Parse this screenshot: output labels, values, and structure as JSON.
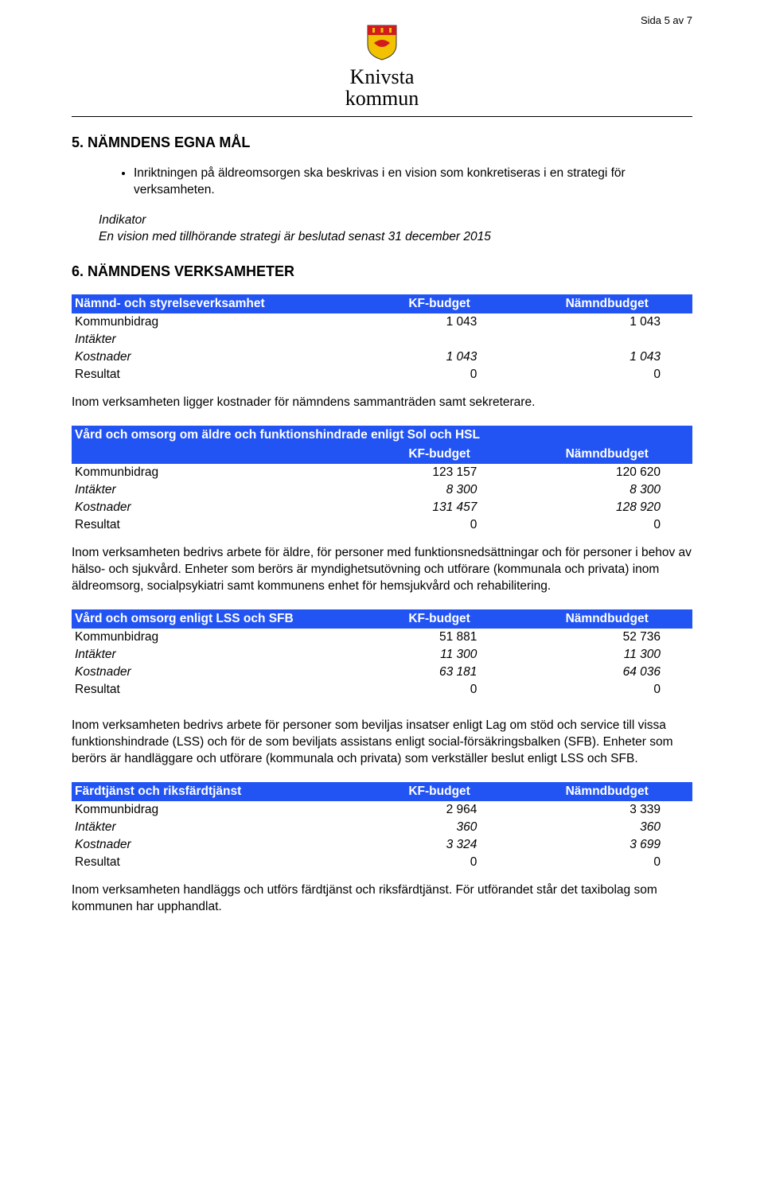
{
  "page_number": "Sida 5 av 7",
  "logo": {
    "line1": "Knivsta",
    "line2": "kommun"
  },
  "colors": {
    "table_header_bg": "#2254f4",
    "table_header_text": "#ffffff",
    "text": "#000000",
    "background": "#ffffff"
  },
  "section5": {
    "heading": "5.  NÄMNDENS EGNA MÅL",
    "bullet": "Inriktningen på äldreomsorgen ska beskrivas i en vision som konkretiseras i en strategi för verksamheten.",
    "indicator_label": "Indikator",
    "indicator_text": "En vision med tillhörande strategi är beslutad senast 31 december 2015"
  },
  "section6": {
    "heading": "6.  NÄMNDENS VERKSAMHETER"
  },
  "table1": {
    "title": "Nämnd- och styrelseverksamhet",
    "col1": "KF-budget",
    "col2": "Nämndbudget",
    "rows": [
      {
        "label": "Kommunbidrag",
        "v1": "1 043",
        "v2": "1 043",
        "italic": false
      },
      {
        "label": "Intäkter",
        "v1": "",
        "v2": "",
        "italic": true
      },
      {
        "label": "Kostnader",
        "v1": "1 043",
        "v2": "1 043",
        "italic": true
      },
      {
        "label": "Resultat",
        "v1": "0",
        "v2": "0",
        "italic": false
      }
    ]
  },
  "para1": "Inom verksamheten ligger kostnader för nämndens sammanträden samt sekreterare.",
  "table2": {
    "title": "Vård och omsorg om äldre och funktionshindrade enligt Sol och HSL",
    "col1": "KF-budget",
    "col2": "Nämndbudget",
    "rows": [
      {
        "label": "Kommunbidrag",
        "v1": "123 157",
        "v2": "120 620",
        "italic": false
      },
      {
        "label": "Intäkter",
        "v1": "8 300",
        "v2": "8 300",
        "italic": true
      },
      {
        "label": "Kostnader",
        "v1": "131 457",
        "v2": "128 920",
        "italic": true
      },
      {
        "label": "Resultat",
        "v1": "0",
        "v2": "0",
        "italic": false
      }
    ]
  },
  "para2": "Inom verksamheten bedrivs arbete för äldre, för personer med funktionsnedsättningar och för personer i behov av hälso- och sjukvård. Enheter som berörs är myndighetsutövning och utförare (kommunala och privata) inom äldreomsorg, socialpsykiatri samt kommunens enhet för hemsjukvård och rehabilitering.",
  "table3": {
    "title": "Vård och omsorg enligt LSS och SFB",
    "col1": "KF-budget",
    "col2": "Nämndbudget",
    "rows": [
      {
        "label": "Kommunbidrag",
        "v1": "51 881",
        "v2": "52 736",
        "italic": false
      },
      {
        "label": "Intäkter",
        "v1": "11 300",
        "v2": "11 300",
        "italic": true
      },
      {
        "label": "Kostnader",
        "v1": "63 181",
        "v2": "64 036",
        "italic": true
      },
      {
        "label": "Resultat",
        "v1": "0",
        "v2": "0",
        "italic": false
      }
    ]
  },
  "para3": "Inom verksamheten bedrivs arbete för personer som beviljas insatser enligt Lag om stöd och service till vissa funktionshindrade (LSS) och för de som beviljats assistans enligt social-försäkringsbalken (SFB).  Enheter som berörs är handläggare och utförare (kommunala och privata) som verkställer beslut enligt LSS och SFB.",
  "table4": {
    "title": "Färdtjänst och riksfärdtjänst",
    "col1": "KF-budget",
    "col2": "Nämndbudget",
    "rows": [
      {
        "label": "Kommunbidrag",
        "v1": "2 964",
        "v2": "3 339",
        "italic": false
      },
      {
        "label": "Intäkter",
        "v1": "360",
        "v2": "360",
        "italic": true
      },
      {
        "label": "Kostnader",
        "v1": "3 324",
        "v2": "3 699",
        "italic": true
      },
      {
        "label": "Resultat",
        "v1": "0",
        "v2": "0",
        "italic": false
      }
    ]
  },
  "para4": "Inom verksamheten handläggs och utförs färdtjänst och riksfärdtjänst. För utförandet står det taxibolag som kommunen har upphandlat."
}
